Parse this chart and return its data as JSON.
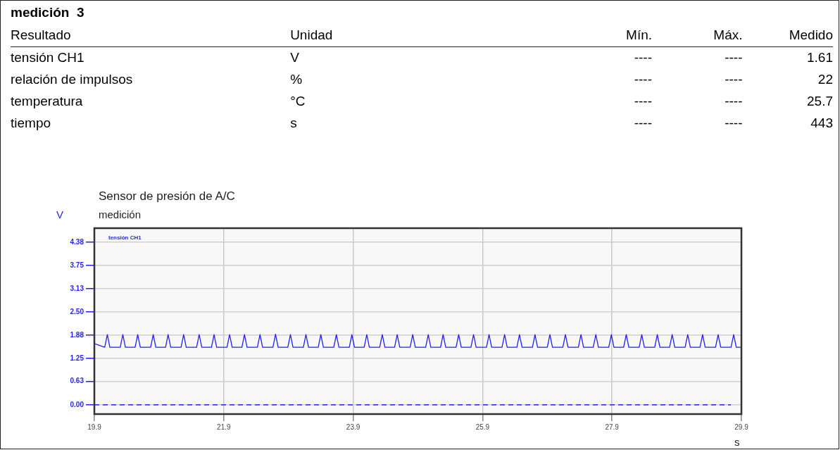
{
  "chart_data": [
    {
      "type": "other",
      "title": "medición  3",
      "annotations": [
        "Resultado",
        "Unidad",
        "Mín.",
        "Máx.",
        "Medido",
        "tensión CH1",
        "V",
        "----",
        "----",
        "1.61",
        "relación de impulsos",
        "%",
        "----",
        "----",
        "22",
        "temperatura",
        "°C",
        "----",
        "----",
        "25.7",
        "tiempo",
        "s",
        "----",
        "----",
        "443"
      ]
    },
    {
      "type": "line",
      "title": "Sensor de presión de A/C",
      "subtitle": "medición",
      "ylabel": "V",
      "xlabel": "s",
      "xlim": [
        19.9,
        29.9
      ],
      "xticks": [
        19.9,
        21.9,
        23.9,
        25.9,
        27.9,
        29.9
      ],
      "ylim": [
        -0.25,
        4.76
      ],
      "yticks": [
        {
          "value": 0,
          "label": "0.00"
        },
        0.63,
        1.25,
        1.88,
        {
          "value": 2.5,
          "label": "2.50"
        },
        3.13,
        3.75,
        4.38
      ],
      "grid": true,
      "legend": "top left",
      "marker": "none",
      "line_style": "solid",
      "ref_lines": [
        {
          "axis": "y",
          "value": 0,
          "color": "#0000ff",
          "line_style": "dashed"
        }
      ],
      "series": [
        {
          "name": "tensión CH1",
          "color": "#1f1fff",
          "x": [
            19.9,
            20.06,
            20.1,
            20.14,
            20.3,
            20.34,
            20.38,
            20.53,
            20.57,
            20.61,
            20.77,
            20.81,
            20.85,
            21.0,
            21.04,
            21.08,
            21.24,
            21.28,
            21.32,
            21.48,
            21.52,
            21.56,
            21.71,
            21.75,
            21.79,
            21.95,
            21.99,
            22.03,
            22.18,
            22.22,
            22.26,
            22.42,
            22.46,
            22.5,
            22.66,
            22.7,
            22.74,
            22.89,
            22.93,
            22.97,
            23.13,
            23.17,
            23.21,
            23.36,
            23.4,
            23.44,
            23.6,
            23.64,
            23.68,
            23.84,
            23.88,
            23.92,
            24.07,
            24.11,
            24.15,
            24.31,
            24.35,
            24.39,
            24.54,
            24.58,
            24.62,
            24.78,
            24.82,
            24.86,
            25.02,
            25.06,
            25.1,
            25.25,
            25.29,
            25.33,
            25.49,
            25.53,
            25.57,
            25.72,
            25.76,
            25.8,
            25.96,
            26.0,
            26.04,
            26.2,
            26.24,
            26.28,
            26.43,
            26.47,
            26.51,
            26.67,
            26.71,
            26.75,
            26.9,
            26.94,
            26.98,
            27.14,
            27.18,
            27.22,
            27.38,
            27.42,
            27.46,
            27.61,
            27.65,
            27.69,
            27.85,
            27.89,
            27.93,
            28.08,
            28.12,
            28.16,
            28.32,
            28.36,
            28.4,
            28.56,
            28.6,
            28.64,
            28.79,
            28.83,
            28.87,
            29.03,
            29.07,
            29.11,
            29.26,
            29.3,
            29.34,
            29.5,
            29.54,
            29.58,
            29.74,
            29.78,
            29.82,
            29.9
          ],
          "values": [
            1.65,
            1.55,
            1.89,
            1.55,
            1.55,
            1.89,
            1.55,
            1.55,
            1.89,
            1.55,
            1.55,
            1.89,
            1.55,
            1.55,
            1.89,
            1.55,
            1.55,
            1.89,
            1.55,
            1.55,
            1.89,
            1.55,
            1.55,
            1.89,
            1.55,
            1.55,
            1.89,
            1.55,
            1.55,
            1.89,
            1.55,
            1.55,
            1.89,
            1.55,
            1.55,
            1.9,
            1.55,
            1.55,
            1.89,
            1.55,
            1.55,
            1.89,
            1.55,
            1.55,
            1.89,
            1.55,
            1.55,
            1.89,
            1.55,
            1.55,
            1.89,
            1.55,
            1.55,
            1.89,
            1.55,
            1.55,
            1.89,
            1.55,
            1.55,
            1.89,
            1.55,
            1.55,
            1.89,
            1.55,
            1.55,
            1.89,
            1.55,
            1.55,
            1.89,
            1.55,
            1.55,
            1.89,
            1.55,
            1.55,
            1.89,
            1.55,
            1.55,
            1.89,
            1.55,
            1.55,
            1.89,
            1.55,
            1.55,
            1.89,
            1.55,
            1.55,
            1.89,
            1.55,
            1.55,
            1.89,
            1.55,
            1.55,
            1.89,
            1.55,
            1.55,
            1.89,
            1.55,
            1.55,
            1.89,
            1.55,
            1.55,
            1.89,
            1.55,
            1.55,
            1.89,
            1.55,
            1.55,
            1.89,
            1.55,
            1.55,
            1.89,
            1.55,
            1.55,
            1.89,
            1.55,
            1.55,
            1.89,
            1.55,
            1.55,
            1.89,
            1.55,
            1.55,
            1.89,
            1.55,
            1.55,
            1.89,
            1.55,
            1.55
          ]
        }
      ]
    }
  ]
}
